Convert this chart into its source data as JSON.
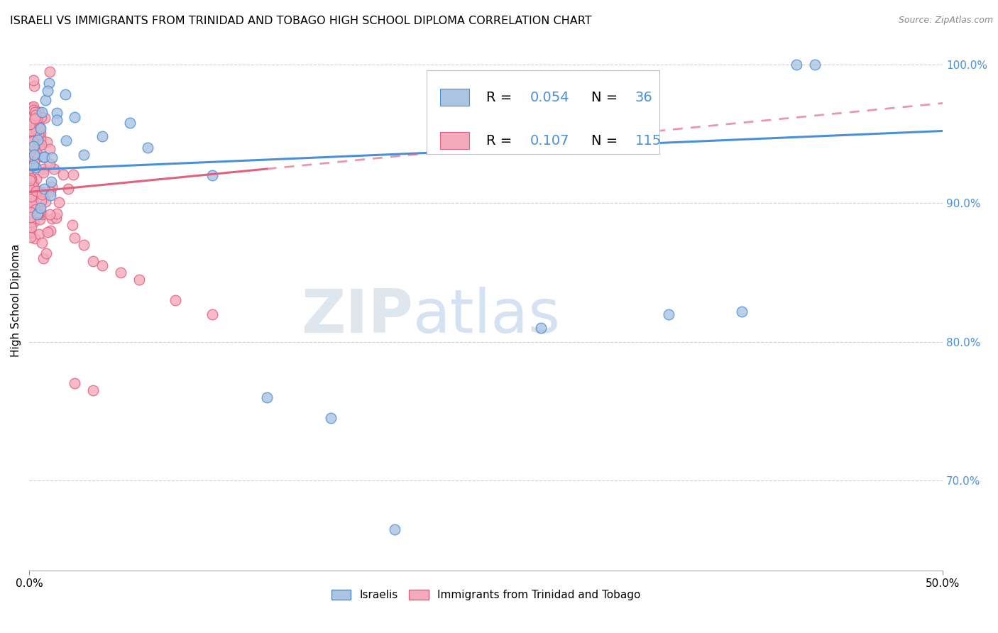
{
  "title": "ISRAELI VS IMMIGRANTS FROM TRINIDAD AND TOBAGO HIGH SCHOOL DIPLOMA CORRELATION CHART",
  "source": "Source: ZipAtlas.com",
  "ylabel": "High School Diploma",
  "xlim": [
    0.0,
    0.5
  ],
  "ylim": [
    0.635,
    1.025
  ],
  "xtick_positions": [
    0.0,
    0.5
  ],
  "xtick_labels": [
    "0.0%",
    "50.0%"
  ],
  "ytick_positions": [
    0.7,
    0.8,
    0.9,
    1.0
  ],
  "ytick_labels": [
    "70.0%",
    "80.0%",
    "90.0%",
    "100.0%"
  ],
  "legend_R_blue": "0.054",
  "legend_N_blue": "36",
  "legend_R_pink": "0.107",
  "legend_N_pink": "115",
  "blue_color": "#aac4e2",
  "pink_color": "#f5aabb",
  "blue_line_color": "#4a90d9",
  "pink_line_color": "#e06080",
  "blue_trend": [
    0.0,
    0.5,
    0.924,
    0.952
  ],
  "pink_trend_solid_end_x": 0.13,
  "pink_trend": [
    0.0,
    0.5,
    0.908,
    0.972
  ],
  "watermark_zip": "ZIP",
  "watermark_atlas": "atlas",
  "background_color": "#ffffff",
  "grid_color": "#d0d0d0",
  "title_fontsize": 11.5,
  "axis_label_fontsize": 11,
  "tick_fontsize": 11,
  "legend_fontsize": 14,
  "source_fontsize": 9
}
